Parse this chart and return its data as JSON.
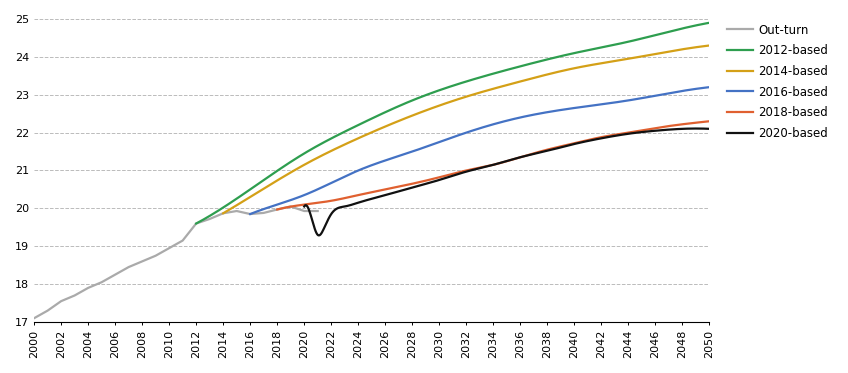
{
  "xlim": [
    2000,
    2050
  ],
  "ylim": [
    17,
    25
  ],
  "yticks": [
    17,
    18,
    19,
    20,
    21,
    22,
    23,
    24,
    25
  ],
  "xticks": [
    2000,
    2002,
    2004,
    2006,
    2008,
    2010,
    2012,
    2014,
    2016,
    2018,
    2020,
    2022,
    2024,
    2026,
    2028,
    2030,
    2032,
    2034,
    2036,
    2038,
    2040,
    2042,
    2044,
    2046,
    2048,
    2050
  ],
  "outturn": {
    "label": "Out-turn",
    "color": "#aaaaaa",
    "x": [
      2000,
      2001,
      2002,
      2003,
      2004,
      2005,
      2006,
      2007,
      2008,
      2009,
      2010,
      2011,
      2012,
      2013,
      2014,
      2015,
      2016,
      2017,
      2018,
      2019,
      2020,
      2021
    ],
    "y": [
      17.1,
      17.3,
      17.55,
      17.7,
      17.9,
      18.05,
      18.25,
      18.45,
      18.6,
      18.75,
      18.95,
      19.15,
      19.6,
      19.72,
      19.87,
      19.93,
      19.85,
      19.88,
      19.97,
      20.05,
      19.93,
      19.93
    ]
  },
  "series": [
    {
      "label": "2012-based",
      "color": "#2e9e4f",
      "points_x": [
        2012,
        2016,
        2020,
        2024,
        2028,
        2032,
        2036,
        2040,
        2044,
        2048,
        2050
      ],
      "points_y": [
        19.6,
        20.5,
        21.45,
        22.2,
        22.85,
        23.35,
        23.75,
        24.1,
        24.4,
        24.75,
        24.9
      ]
    },
    {
      "label": "2014-based",
      "color": "#d4a017",
      "points_x": [
        2014,
        2016,
        2020,
        2024,
        2028,
        2032,
        2036,
        2040,
        2044,
        2048,
        2050
      ],
      "points_y": [
        19.87,
        20.3,
        21.15,
        21.85,
        22.45,
        22.95,
        23.35,
        23.7,
        23.95,
        24.2,
        24.3
      ]
    },
    {
      "label": "2016-based",
      "color": "#4472c4",
      "points_x": [
        2016,
        2018,
        2020,
        2024,
        2028,
        2032,
        2036,
        2040,
        2044,
        2048,
        2050
      ],
      "points_y": [
        19.85,
        20.1,
        20.35,
        21.0,
        21.5,
        22.0,
        22.4,
        22.65,
        22.85,
        23.1,
        23.2
      ]
    },
    {
      "label": "2018-based",
      "color": "#e06030",
      "points_x": [
        2018,
        2020,
        2022,
        2024,
        2026,
        2028,
        2030,
        2032,
        2034,
        2036,
        2038,
        2040,
        2042,
        2044,
        2046,
        2048,
        2050
      ],
      "points_y": [
        19.97,
        20.1,
        20.2,
        20.35,
        20.5,
        20.65,
        20.82,
        21.0,
        21.15,
        21.35,
        21.55,
        21.72,
        21.88,
        22.0,
        22.12,
        22.22,
        22.3
      ]
    },
    {
      "label": "2020-based",
      "color": "#111111",
      "points_x": [
        2020,
        2020.5,
        2021,
        2021.5,
        2022,
        2023,
        2024,
        2026,
        2028,
        2030,
        2032,
        2034,
        2036,
        2038,
        2040,
        2042,
        2044,
        2046,
        2048,
        2050
      ],
      "points_y": [
        20.05,
        19.8,
        19.3,
        19.5,
        19.85,
        20.05,
        20.15,
        20.35,
        20.55,
        20.75,
        20.97,
        21.15,
        21.35,
        21.52,
        21.7,
        21.85,
        21.97,
        22.05,
        22.1,
        22.1
      ]
    }
  ],
  "background_color": "#ffffff",
  "grid_color": "#bbbbbb",
  "linewidth": 1.6
}
